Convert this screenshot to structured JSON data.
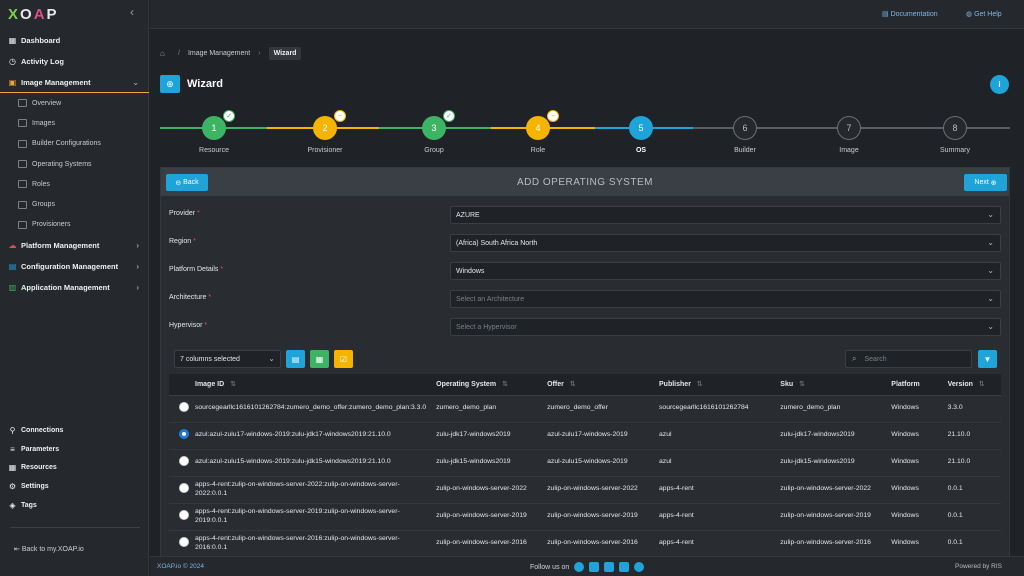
{
  "brand": {
    "logo": "XOAP"
  },
  "sidebar": {
    "items": [
      {
        "label": "Dashboard"
      },
      {
        "label": "Activity Log"
      },
      {
        "label": "Image Management"
      }
    ],
    "sub_items": [
      {
        "label": "Overview"
      },
      {
        "label": "Images"
      },
      {
        "label": "Builder Configurations"
      },
      {
        "label": "Operating Systems"
      },
      {
        "label": "Roles"
      },
      {
        "label": "Groups"
      },
      {
        "label": "Provisioners"
      }
    ],
    "sections": [
      {
        "label": "Platform Management",
        "color": "#e0524b"
      },
      {
        "label": "Configuration Management",
        "color": "#1ea4d8"
      },
      {
        "label": "Application Management",
        "color": "#3db464"
      }
    ],
    "bottom_items": [
      {
        "label": "Connections"
      },
      {
        "label": "Parameters"
      },
      {
        "label": "Resources"
      },
      {
        "label": "Settings"
      },
      {
        "label": "Tags"
      }
    ],
    "back_link": "Back to my.XOAP.io"
  },
  "topbar": {
    "documentation": "Documentation",
    "help": "Get Help"
  },
  "breadcrumb": {
    "parent": "Image Management",
    "current": "Wizard"
  },
  "page": {
    "title": "Wizard"
  },
  "stepper": {
    "steps": [
      {
        "number": "1",
        "label": "Resource",
        "state": "done"
      },
      {
        "number": "2",
        "label": "Provisioner",
        "state": "warn"
      },
      {
        "number": "3",
        "label": "Group",
        "state": "done"
      },
      {
        "number": "4",
        "label": "Role",
        "state": "warn"
      },
      {
        "number": "5",
        "label": "OS",
        "state": "current"
      },
      {
        "number": "6",
        "label": "Builder",
        "state": "todo"
      },
      {
        "number": "7",
        "label": "Image",
        "state": "todo"
      },
      {
        "number": "8",
        "label": "Summary",
        "state": "todo"
      }
    ]
  },
  "card": {
    "back_label": "Back",
    "next_label": "Next",
    "title": "ADD OPERATING SYSTEM"
  },
  "form": {
    "provider": {
      "label": "Provider",
      "value": "AZURE"
    },
    "region": {
      "label": "Region",
      "value": "(Africa) South Africa North"
    },
    "platform": {
      "label": "Platform Details",
      "value": "Windows"
    },
    "architecture": {
      "label": "Architecture",
      "placeholder": "Select an Architecture"
    },
    "hypervisor": {
      "label": "Hypervisor",
      "placeholder": "Select a Hypervisor"
    }
  },
  "table": {
    "columns_selected": "7 columns selected",
    "search_placeholder": "Search",
    "headers": [
      "Image ID",
      "Operating System",
      "Offer",
      "Publisher",
      "Sku",
      "Platform",
      "Version"
    ],
    "rows": [
      {
        "selected": false,
        "image_id": "sourcegearllc1616101262784:zumero_demo_offer:zumero_demo_plan:3.3.0",
        "os": "zumero_demo_plan",
        "offer": "zumero_demo_offer",
        "publisher": "sourcegearllc1616101262784",
        "sku": "zumero_demo_plan",
        "platform": "Windows",
        "version": "3.3.0"
      },
      {
        "selected": true,
        "image_id": "azul:azul-zulu17-windows-2019:zulu-jdk17-windows2019:21.10.0",
        "os": "zulu-jdk17-windows2019",
        "offer": "azul-zulu17-windows-2019",
        "publisher": "azul",
        "sku": "zulu-jdk17-windows2019",
        "platform": "Windows",
        "version": "21.10.0"
      },
      {
        "selected": false,
        "image_id": "azul:azul-zulu15-windows-2019:zulu-jdk15-windows2019:21.10.0",
        "os": "zulu-jdk15-windows2019",
        "offer": "azul-zulu15-windows-2019",
        "publisher": "azul",
        "sku": "zulu-jdk15-windows2019",
        "platform": "Windows",
        "version": "21.10.0"
      },
      {
        "selected": false,
        "image_id": "apps-4-rent:zulip-on-windows-server-2022:zulip-on-windows-server-2022:0.0.1",
        "os": "zulip-on-windows-server-2022",
        "offer": "zulip-on-windows-server-2022",
        "publisher": "apps-4-rent",
        "sku": "zulip-on-windows-server-2022",
        "platform": "Windows",
        "version": "0.0.1"
      },
      {
        "selected": false,
        "image_id": "apps-4-rent:zulip-on-windows-server-2019:zulip-on-windows-server-2019:0.0.1",
        "os": "zulip-on-windows-server-2019",
        "offer": "zulip-on-windows-server-2019",
        "publisher": "apps-4-rent",
        "sku": "zulip-on-windows-server-2019",
        "platform": "Windows",
        "version": "0.0.1"
      },
      {
        "selected": false,
        "image_id": "apps-4-rent:zulip-on-windows-server-2016:zulip-on-windows-server-2016:0.0.1",
        "os": "zulip-on-windows-server-2016",
        "offer": "zulip-on-windows-server-2016",
        "publisher": "apps-4-rent",
        "sku": "zulip-on-windows-server-2016",
        "platform": "Windows",
        "version": "0.0.1"
      }
    ]
  },
  "footer": {
    "copyright": "XOAP.io © 2024",
    "follow": "Follow us on",
    "powered": "Powered by RIS"
  },
  "colors": {
    "accent": "#1ea4d8",
    "success": "#3db464",
    "warning": "#f5b400"
  }
}
